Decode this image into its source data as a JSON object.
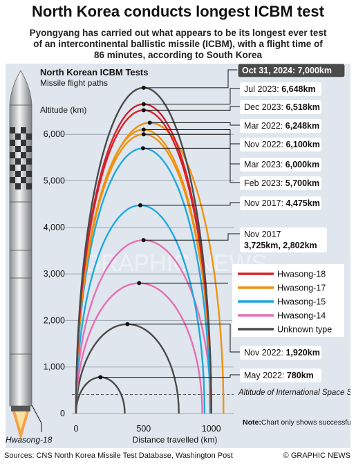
{
  "header": {
    "title": "North Korea conducts longest ICBM test",
    "subtitle": "Pyongyang has carried out what appears to be its longest ever test of an intercontinental ballistic missile (ICBM), with a flight time of 86 minutes, according to South Korea"
  },
  "footer": {
    "sources": "Sources: CNS North Korea Missile Test Database, Washington Post",
    "credit": "© GRAPHIC NEWS"
  },
  "watermark": "GRAPHIC NEWS",
  "rocket_label": "Hwasong-18",
  "colors": {
    "panel": "#dfe6ee",
    "Hwasong-18": "#d7202a",
    "Hwasong-17": "#f0920f",
    "Hwasong-15": "#1fa8df",
    "Hwasong-14": "#e66fb2",
    "Unknown type": "#4a4a4a"
  },
  "chart_data": {
    "type": "line",
    "title": "North Korean ICBM Tests",
    "subtitle": "Missile flight paths",
    "ylabel": "Altitude (km)",
    "xlabel": "Distance travelled (km)",
    "xlim": [
      0,
      1150
    ],
    "ylim": [
      0,
      7000
    ],
    "xticks": [
      0,
      500,
      1000
    ],
    "yticks": [
      0,
      1000,
      2000,
      3000,
      4000,
      5000,
      6000
    ],
    "ytick_labels": [
      "0",
      "1,000",
      "2,000",
      "3,000",
      "4,000",
      "5,000",
      "6,000"
    ],
    "iss_altitude": 408,
    "iss_label": "Altitude of International Space Station",
    "note_bold": "Note:",
    "note": "Chart only shows successful tests for which data is available",
    "legend": [
      "Hwasong-18",
      "Hwasong-17",
      "Hwasong-15",
      "Hwasong-14",
      "Unknown type"
    ],
    "flights": [
      {
        "date": "Oct 31, 2024:",
        "apogee_label": "7,000km",
        "apogee": 7000,
        "type": "Unknown type",
        "range": 1000
      },
      {
        "date": "Jul 2023:",
        "apogee_label": "6,648km",
        "apogee": 6648,
        "type": "Hwasong-18",
        "range": 1000
      },
      {
        "date": "Dec 2023:",
        "apogee_label": "6,518km",
        "apogee": 6518,
        "type": "Hwasong-18",
        "range": 1000
      },
      {
        "date": "Mar 2022:",
        "apogee_label": "6,248km",
        "apogee": 6248,
        "type": "Hwasong-17",
        "range": 1090
      },
      {
        "date": "Nov 2022:",
        "apogee_label": "6,100km",
        "apogee": 6100,
        "type": "Hwasong-17",
        "range": 1000
      },
      {
        "date": "Mar 2023:",
        "apogee_label": "6,000km",
        "apogee": 6000,
        "type": "Hwasong-17",
        "range": 1000
      },
      {
        "date": "Feb 2023:",
        "apogee_label": "5,700km",
        "apogee": 5700,
        "type": "Hwasong-15",
        "range": 990
      },
      {
        "date": "Nov 2017:",
        "apogee_label": "4,475km",
        "apogee": 4475,
        "type": "Hwasong-15",
        "range": 950
      },
      {
        "date": "Nov 2017",
        "apogee_label": "3,725km, 2,802km",
        "apogee": 3725,
        "type": "Hwasong-14",
        "range": 998
      },
      {
        "date": "",
        "apogee_label": "",
        "apogee": 2802,
        "type": "Hwasong-14",
        "range": 933
      },
      {
        "date": "Nov 2022:",
        "apogee_label": "1,920km",
        "apogee": 1920,
        "type": "Unknown type",
        "range": 760
      },
      {
        "date": "May 2022:",
        "apogee_label": "780km",
        "apogee": 780,
        "type": "Unknown type",
        "range": 360
      }
    ]
  }
}
